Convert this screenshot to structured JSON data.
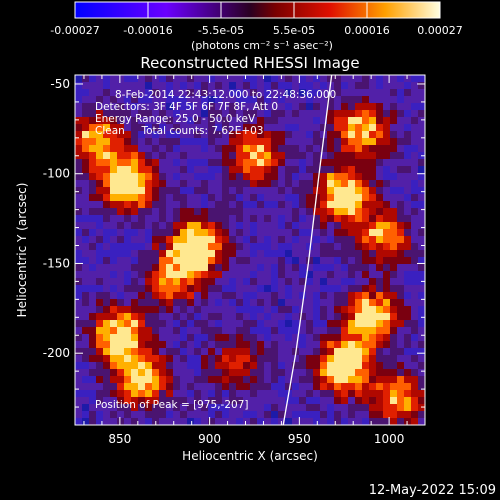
{
  "colorbar": {
    "ticks": [
      "-0.00027",
      "-0.00016",
      "-5.5e-05",
      "5.5e-05",
      "0.00016",
      "0.00027"
    ],
    "units": "(photons cm⁻² s⁻¹ asec⁻²)",
    "range": [
      -0.00027,
      0.00027
    ]
  },
  "chart_data": {
    "type": "heatmap",
    "title": "Reconstructed RHESSI Image",
    "xlabel": "Heliocentric X (arcsec)",
    "ylabel": "Heliocentric Y (arcsec)",
    "xlim": [
      825,
      1020
    ],
    "ylim": [
      -240,
      -45
    ],
    "x_ticks": [
      850,
      900,
      950,
      1000
    ],
    "y_ticks": [
      -50,
      -100,
      -150,
      -200
    ],
    "x_tick_labels": [
      "850",
      "900",
      "950",
      "1000"
    ],
    "y_tick_labels": [
      "-50",
      "-100",
      "-150",
      "-200"
    ],
    "annotations": [
      "8-Feb-2014 22:43:12.000 to 22:48:36.000",
      "Detectors: 3F 4F 5F 6F 7F 8F, Att 0",
      "Energy Range: 25.0 - 50.0 keV",
      "Clean     Total counts: 7.62E+03"
    ],
    "peak_label": "Position of Peak = [975,-207]",
    "peak": [
      975,
      -207
    ],
    "limb_points": [
      [
        941,
        -240
      ],
      [
        948,
        -200
      ],
      [
        955,
        -150
      ],
      [
        961,
        -100
      ],
      [
        968,
        -45
      ]
    ],
    "bright_regions": [
      {
        "x": 855,
        "y": -105,
        "level": 0.95
      },
      {
        "x": 838,
        "y": -82,
        "level": 0.7
      },
      {
        "x": 893,
        "y": -140,
        "level": 0.9
      },
      {
        "x": 880,
        "y": -158,
        "level": 0.6
      },
      {
        "x": 850,
        "y": -190,
        "level": 0.85
      },
      {
        "x": 862,
        "y": -215,
        "level": 0.7
      },
      {
        "x": 925,
        "y": -90,
        "level": 0.65
      },
      {
        "x": 975,
        "y": -112,
        "level": 0.95
      },
      {
        "x": 985,
        "y": -75,
        "level": 0.7
      },
      {
        "x": 997,
        "y": -135,
        "level": 0.6
      },
      {
        "x": 975,
        "y": -207,
        "level": 1.0
      },
      {
        "x": 990,
        "y": -180,
        "level": 0.85
      },
      {
        "x": 1005,
        "y": -225,
        "level": 0.6
      },
      {
        "x": 915,
        "y": -205,
        "level": 0.4
      }
    ]
  },
  "timestamp": "12-May-2022 15:09"
}
